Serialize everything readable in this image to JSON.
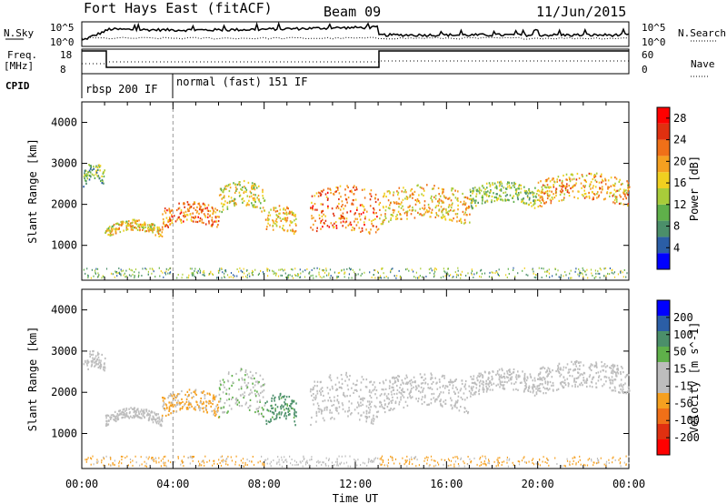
{
  "header": {
    "station": "Fort Hays East (fitACF)",
    "beam": "Beam 09",
    "date": "11/Jun/2015"
  },
  "panel_labels": {
    "nsky": "N.Sky",
    "nsearch": "N.Search",
    "freq_line1": "Freq.",
    "freq_line2": "[MHz]",
    "nave": "Nave",
    "cpid": "CPID",
    "nsky_top": "10^5",
    "nsky_bottom": "10^0",
    "freq_top": "18",
    "freq_bottom": "8",
    "nave_top": "60",
    "nave_bottom": "0"
  },
  "cpid": [
    {
      "label": "rbsp 200 IF",
      "start_hour": 0
    },
    {
      "label": "normal (fast) 151 IF",
      "start_hour": 4
    }
  ],
  "colors": {
    "power_scale": [
      "#0000ff",
      "#2b5ea6",
      "#4b8f6a",
      "#5fb04a",
      "#a8cc3a",
      "#f0d020",
      "#f5a020",
      "#f07018",
      "#e03010",
      "#ff0000"
    ],
    "velocity_scale": [
      "#ff0000",
      "#e03010",
      "#f07018",
      "#f5a020",
      "#bdbdbd",
      "#bdbdbd",
      "#5fb04a",
      "#4b8f6a",
      "#2b5ea6",
      "#0000ff"
    ]
  },
  "chart_data": [
    {
      "type": "heatmap",
      "title": "Power",
      "xlabel": "",
      "ylabel": "Slant Range [km]",
      "x_ticks": [
        "00:00",
        "04:00",
        "08:00",
        "12:00",
        "16:00",
        "20:00",
        "00:00"
      ],
      "y_ticks": [
        "1000",
        "2000",
        "3000",
        "4000"
      ],
      "ylim": [
        150,
        4500
      ],
      "colorbar": {
        "label": "Power [dB]",
        "ticks": [
          "4",
          "8",
          "12",
          "16",
          "20",
          "24",
          "28"
        ],
        "range": [
          0,
          30
        ]
      },
      "bands": [
        {
          "t_start": 0.05,
          "t_end": 1.0,
          "r_low": 2550,
          "r_high": 2950,
          "value": 11
        },
        {
          "t_start": 1.0,
          "t_end": 3.5,
          "r_low": 1300,
          "r_high": 1550,
          "value": 17
        },
        {
          "t_start": 3.5,
          "t_end": 6.0,
          "r_low": 1500,
          "r_high": 2000,
          "value": 22
        },
        {
          "t_start": 6.0,
          "t_end": 8.0,
          "r_low": 1900,
          "r_high": 2500,
          "value": 15
        },
        {
          "t_start": 8.0,
          "t_end": 9.4,
          "r_low": 1300,
          "r_high": 1900,
          "value": 18
        },
        {
          "t_start": 10.0,
          "t_end": 13.0,
          "r_low": 1300,
          "r_high": 2400,
          "value": 22
        },
        {
          "t_start": 13.0,
          "t_end": 17.0,
          "r_low": 1600,
          "r_high": 2400,
          "value": 18
        },
        {
          "t_start": 17.0,
          "t_end": 20.0,
          "r_low": 2000,
          "r_high": 2500,
          "value": 12
        },
        {
          "t_start": 20.0,
          "t_end": 24.0,
          "r_low": 2050,
          "r_high": 2700,
          "value": 19
        }
      ]
    },
    {
      "type": "heatmap",
      "title": "Velocity",
      "xlabel": "Time UT",
      "ylabel": "Slant Range [km]",
      "x_ticks": [
        "00:00",
        "04:00",
        "08:00",
        "12:00",
        "16:00",
        "20:00",
        "00:00"
      ],
      "y_ticks": [
        "1000",
        "2000",
        "3000",
        "4000"
      ],
      "ylim": [
        150,
        4500
      ],
      "colorbar": {
        "label": "Velocity [m s^-1]",
        "ticks": [
          "200",
          "100",
          "50",
          "15",
          "-15",
          "-50",
          "-100",
          "-200"
        ],
        "range": [
          -250,
          250
        ]
      },
      "bands": [
        {
          "t_start": 0.05,
          "t_end": 1.0,
          "r_low": 2550,
          "r_high": 2950,
          "value": 0
        },
        {
          "t_start": 1.0,
          "t_end": 3.5,
          "r_low": 1300,
          "r_high": 1550,
          "value": -5
        },
        {
          "t_start": 3.5,
          "t_end": 6.0,
          "r_low": 1500,
          "r_high": 2000,
          "value": -60
        },
        {
          "t_start": 6.0,
          "t_end": 8.0,
          "r_low": 1500,
          "r_high": 2500,
          "value": 40
        },
        {
          "t_start": 8.0,
          "t_end": 9.4,
          "r_low": 1300,
          "r_high": 1900,
          "value": 120
        },
        {
          "t_start": 10.0,
          "t_end": 13.0,
          "r_low": 1300,
          "r_high": 2400,
          "value": 0
        },
        {
          "t_start": 13.0,
          "t_end": 17.0,
          "r_low": 1600,
          "r_high": 2400,
          "value": 0
        },
        {
          "t_start": 17.0,
          "t_end": 20.0,
          "r_low": 2000,
          "r_high": 2500,
          "value": 0
        },
        {
          "t_start": 20.0,
          "t_end": 24.0,
          "r_low": 2050,
          "r_high": 2700,
          "value": 0
        }
      ]
    }
  ]
}
